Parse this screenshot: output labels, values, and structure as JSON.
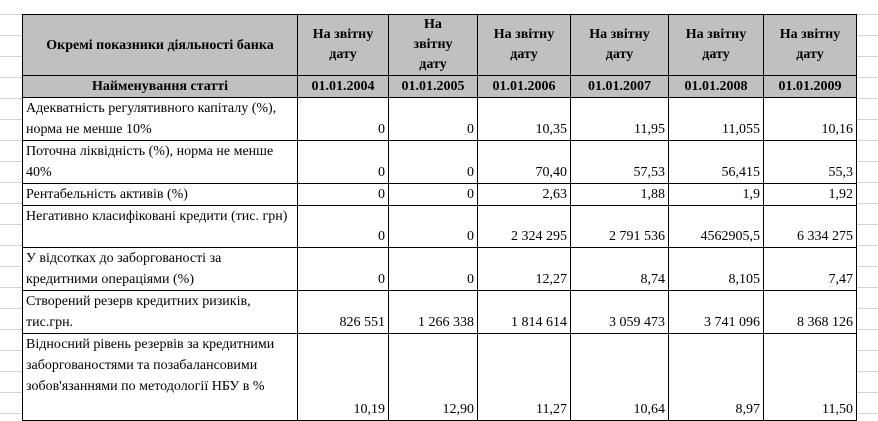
{
  "header": {
    "title": "Окремі показники діяльності банка",
    "item_label": "Найменування статті",
    "columns": [
      {
        "label": "На звітну дату",
        "date": "01.01.2004"
      },
      {
        "label": "На звітну дату",
        "date": "01.01.2005"
      },
      {
        "label": "На звітну дату",
        "date": "01.01.2006"
      },
      {
        "label": "На звітну дату",
        "date": "01.01.2007"
      },
      {
        "label": "На звітну дату",
        "date": "01.01.2008"
      },
      {
        "label": "На звітну дату",
        "date": "01.01.2009"
      }
    ]
  },
  "table": {
    "rows": [
      {
        "label": "Адекватність регулятивного капіталу (%), норма не менше 10%",
        "values": [
          "0",
          "0",
          "10,35",
          "11,95",
          "11,055",
          "10,16"
        ]
      },
      {
        "label": "Поточна ліквідність (%), норма не менше 40%",
        "values": [
          "0",
          "0",
          "70,40",
          "57,53",
          "56,415",
          "55,3"
        ]
      },
      {
        "label": "Рентабельність активів (%)",
        "values": [
          "0",
          "0",
          "2,63",
          "1,88",
          "1,9",
          "1,92"
        ]
      },
      {
        "label": "Негативно класифіковані кредити (тис. грн)",
        "values": [
          "0",
          "0",
          "2 324 295",
          "2 791 536",
          "4562905,5",
          "6 334 275"
        ]
      },
      {
        "label": "У відсотках до заборгованості за кредитними операціями (%)",
        "values": [
          "0",
          "0",
          "12,27",
          "8,74",
          "8,105",
          "7,47"
        ]
      },
      {
        "label": "Створений резерв кредитних ризиків, тис.грн.",
        "values": [
          "826 551",
          "1 266 338",
          "1 814 614",
          "3 059 473",
          "3 741 096",
          "8 368 126"
        ]
      },
      {
        "label": "Відносний рівень резервів за кредитними заборгованостями та позабалансовими зобов'язаннями по методології НБУ в %",
        "values": [
          "10,19",
          "12,90",
          "11,27",
          "10,64",
          "8,97",
          "11,50"
        ]
      }
    ]
  }
}
